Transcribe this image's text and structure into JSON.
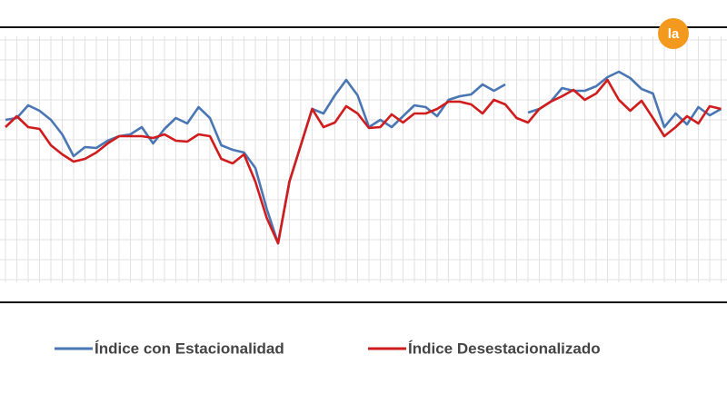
{
  "chart_data": {
    "type": "line",
    "categories": [
      null,
      null,
      null,
      null,
      null,
      null,
      null,
      null,
      null,
      null,
      null,
      null,
      null,
      null,
      null,
      null,
      null,
      null,
      null,
      null,
      null,
      null,
      null,
      null,
      null,
      null,
      null,
      null,
      null,
      null,
      null,
      null,
      null,
      null,
      null,
      null,
      null,
      null,
      null,
      null,
      null,
      null,
      null,
      null,
      null,
      null,
      null,
      null,
      null,
      null,
      null,
      null,
      null,
      null,
      null,
      null,
      null,
      null,
      null,
      null,
      null,
      null,
      null,
      null
    ],
    "ylim": [
      0,
      303
    ],
    "grid": true,
    "legend": "bottom",
    "logo": "la",
    "series": [
      {
        "name": "Índice con Estacionalidad",
        "color": "#4a76b4",
        "values": [
          201,
          203,
          217,
          211,
          201,
          185,
          161,
          171,
          170,
          178,
          183,
          185,
          193,
          175,
          191,
          203,
          197,
          215,
          203,
          173,
          168,
          165,
          148,
          103,
          65,
          133,
          173,
          213,
          208,
          228,
          245,
          228,
          193,
          201,
          193,
          205,
          217,
          215,
          205,
          223,
          227,
          229,
          240,
          233,
          240,
          null,
          209,
          213,
          221,
          236,
          233,
          233,
          238,
          248,
          254,
          247,
          235,
          230,
          193,
          208,
          196,
          215,
          206,
          213
        ]
      },
      {
        "name": "Índice Desestacionalizado",
        "color": "#d01c1c",
        "values": [
          193,
          205,
          193,
          191,
          173,
          163,
          155,
          158,
          165,
          175,
          183,
          183,
          183,
          181,
          185,
          178,
          177,
          185,
          183,
          158,
          153,
          163,
          133,
          93,
          65,
          133,
          173,
          213,
          193,
          198,
          216,
          208,
          192,
          193,
          207,
          198,
          208,
          208,
          213,
          221,
          221,
          218,
          208,
          223,
          218,
          203,
          198,
          213,
          221,
          227,
          234,
          223,
          230,
          245,
          223,
          211,
          222,
          203,
          183,
          193,
          205,
          197,
          216,
          213
        ]
      }
    ]
  }
}
